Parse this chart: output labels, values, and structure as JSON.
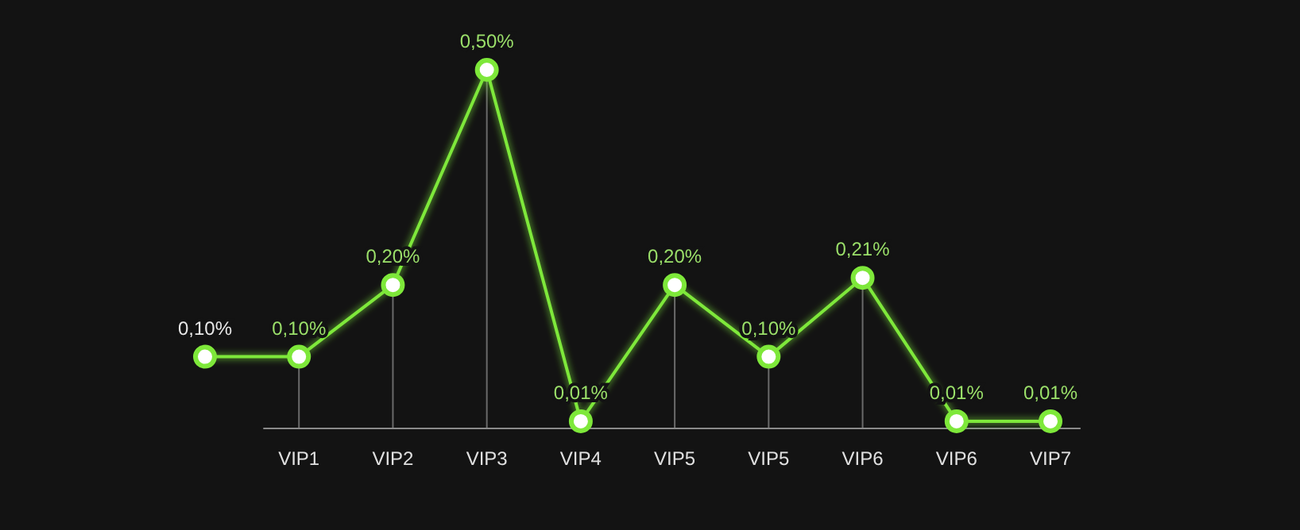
{
  "chart_data": {
    "type": "line",
    "categories": [
      null,
      "VIP1",
      "VIP2",
      "VIP3",
      "VIP4",
      "VIP5",
      "VIP5",
      "VIP6",
      "VIP6",
      "VIP7"
    ],
    "series": [
      {
        "color": "#7ee83a",
        "values": [
          0.1,
          0.1,
          0.2,
          0.5,
          0.01,
          0.2,
          0.1,
          0.21,
          0.01,
          0.01
        ],
        "value_labels": [
          "0,10%",
          "0,10%",
          "0,20%",
          "0,50%",
          "0,01%",
          "0,20%",
          "0,10%",
          "0,21%",
          "0,01%",
          "0,01%"
        ]
      }
    ],
    "marker": "circle",
    "line_style": "solid"
  }
}
